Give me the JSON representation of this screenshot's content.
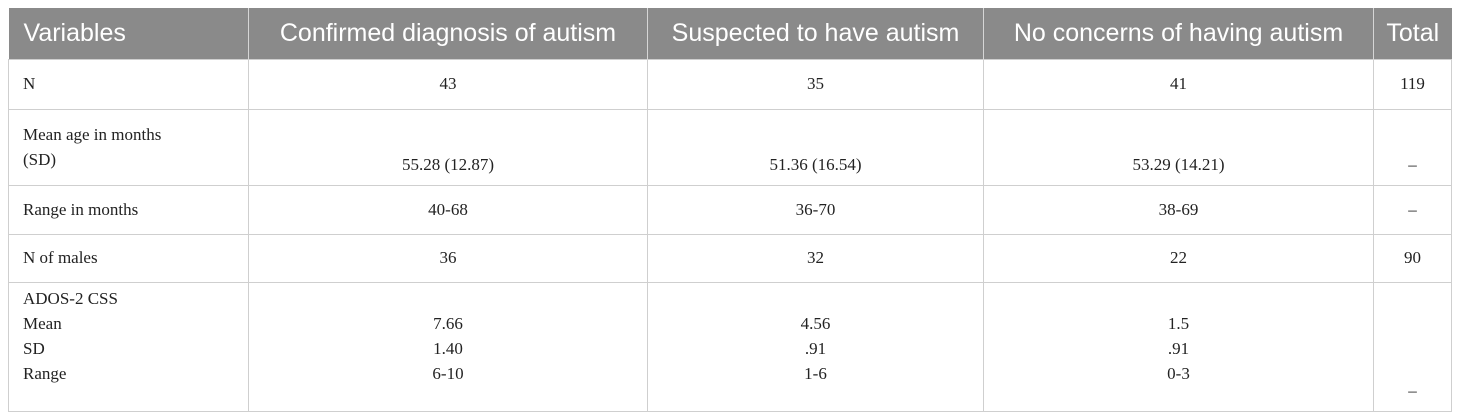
{
  "table": {
    "headers": [
      "Variables",
      "Confirmed diagnosis of autism",
      "Suspected to have autism",
      "No concerns of having autism",
      "Total"
    ],
    "rows": {
      "n": {
        "label": "N",
        "values": [
          "43",
          "35",
          "41",
          "119"
        ]
      },
      "age": {
        "label_line1": "Mean age in months",
        "label_line2": "(SD)",
        "values": [
          "55.28 (12.87)",
          "51.36 (16.54)",
          "53.29 (14.21)",
          "–"
        ]
      },
      "range": {
        "label": "Range in months",
        "values": [
          "40-68",
          "36-70",
          "38-69",
          "–"
        ]
      },
      "males": {
        "label": "N of males",
        "values": [
          "36",
          "32",
          "22",
          "90"
        ]
      },
      "ados": {
        "labels": [
          "ADOS-2 CSS",
          "Mean",
          "SD",
          "Range"
        ],
        "confirmed": [
          "7.66",
          "1.40",
          "6-10"
        ],
        "suspected": [
          "4.56",
          ".91",
          "1-6"
        ],
        "no_concerns": [
          "1.5",
          ".91",
          "0-3"
        ],
        "total": "–"
      }
    }
  }
}
